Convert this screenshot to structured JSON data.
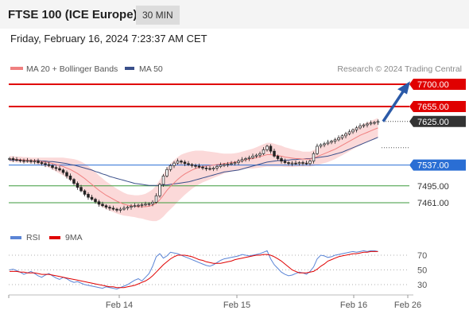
{
  "header": {
    "title": "FTSE 100 (ICE Europe)",
    "timeframe": "30 MIN"
  },
  "datetime": "Friday, February 16, 2024 7:23:37 AM CET",
  "copyright": "Research © 2024 Trading Central",
  "colors": {
    "resistance": "#e00000",
    "support": "#2a6ed4",
    "target": "#3c9a3c",
    "current": "#333333",
    "ma20": "#f08080",
    "ma50": "#3a4f8a",
    "band": "#fbd9d9",
    "rsi": "#5b85d6",
    "rsi_ma": "#e00000"
  },
  "chart_data": [
    {
      "type": "candlestick",
      "legend": [
        {
          "name": "MA 20 + Bollinger Bands",
          "color": "#f08080"
        },
        {
          "name": "MA 50",
          "color": "#3a4f8a"
        }
      ],
      "x_ticks": [
        "Feb 14",
        "Feb 15",
        "Feb 16",
        "Feb 26"
      ],
      "levels": [
        {
          "value": 7700.0,
          "label": "7700.00",
          "kind": "resistance"
        },
        {
          "value": 7655.0,
          "label": "7655.00",
          "kind": "resistance"
        },
        {
          "value": 7625.0,
          "label": "7625.00",
          "kind": "current"
        },
        {
          "value": 7537.0,
          "label": "7537.00",
          "kind": "support"
        },
        {
          "value": 7495.0,
          "label": "7495.00",
          "kind": "target"
        },
        {
          "value": 7461.0,
          "label": "7461.00",
          "kind": "target"
        }
      ],
      "close": [
        7550,
        7548,
        7547,
        7546,
        7545,
        7546,
        7544,
        7545,
        7542,
        7540,
        7538,
        7536,
        7532,
        7530,
        7527,
        7522,
        7515,
        7508,
        7500,
        7492,
        7485,
        7478,
        7472,
        7468,
        7463,
        7458,
        7455,
        7452,
        7450,
        7448,
        7446,
        7448,
        7450,
        7452,
        7454,
        7455,
        7456,
        7457,
        7458,
        7459,
        7462,
        7475,
        7498,
        7515,
        7528,
        7536,
        7541,
        7545,
        7543,
        7540,
        7538,
        7536,
        7535,
        7533,
        7531,
        7530,
        7529,
        7531,
        7534,
        7537,
        7538,
        7539,
        7540,
        7542,
        7545,
        7548,
        7550,
        7552,
        7555,
        7557,
        7560,
        7568,
        7575,
        7565,
        7555,
        7550,
        7545,
        7542,
        7540,
        7541,
        7540,
        7542,
        7541,
        7540,
        7545,
        7560,
        7575,
        7578,
        7580,
        7583,
        7585,
        7588,
        7592,
        7596,
        7600,
        7604,
        7608,
        7612,
        7616,
        7618,
        7620,
        7622,
        7623,
        7625
      ],
      "ma20": [
        7549,
        7549,
        7548,
        7548,
        7547,
        7547,
        7546,
        7546,
        7545,
        7544,
        7543,
        7542,
        7540,
        7538,
        7536,
        7534,
        7531,
        7528,
        7524,
        7520,
        7515,
        7510,
        7504,
        7498,
        7492,
        7486,
        7481,
        7476,
        7472,
        7468,
        7464,
        7461,
        7458,
        7456,
        7455,
        7454,
        7453,
        7453,
        7453,
        7454,
        7456,
        7460,
        7467,
        7476,
        7486,
        7494,
        7501,
        7508,
        7514,
        7519,
        7523,
        7527,
        7530,
        7532,
        7534,
        7535,
        7536,
        7537,
        7538,
        7539,
        7540,
        7541,
        7542,
        7543,
        7544,
        7546,
        7548,
        7549,
        7550,
        7552,
        7554,
        7556,
        7558,
        7558,
        7557,
        7556,
        7555,
        7553,
        7552,
        7551,
        7550,
        7550,
        7549,
        7549,
        7549,
        7551,
        7554,
        7557,
        7560,
        7563,
        7566,
        7569,
        7573,
        7577,
        7581,
        7585,
        7589,
        7593,
        7597,
        7600,
        7603,
        7606,
        7609,
        7612
      ],
      "ma50": [
        7547,
        7547,
        7547,
        7547,
        7547,
        7546,
        7546,
        7546,
        7546,
        7545,
        7545,
        7544,
        7544,
        7543,
        7542,
        7541,
        7540,
        7538,
        7537,
        7535,
        7533,
        7531,
        7529,
        7527,
        7524,
        7522,
        7519,
        7517,
        7514,
        7512,
        7510,
        7508,
        7506,
        7504,
        7502,
        7500,
        7499,
        7498,
        7497,
        7496,
        7496,
        7496,
        7496,
        7497,
        7497,
        7498,
        7499,
        7500,
        7501,
        7502,
        7503,
        7505,
        7507,
        7509,
        7511,
        7513,
        7515,
        7517,
        7519,
        7521,
        7523,
        7524,
        7525,
        7526,
        7527,
        7529,
        7531,
        7533,
        7535,
        7537,
        7539,
        7541,
        7543,
        7544,
        7545,
        7546,
        7546,
        7547,
        7547,
        7548,
        7548,
        7549,
        7549,
        7550,
        7550,
        7551,
        7552,
        7553,
        7554,
        7555,
        7557,
        7559,
        7561,
        7563,
        7566,
        7569,
        7572,
        7575,
        7578,
        7581,
        7584,
        7587,
        7590,
        7593
      ],
      "bb_width": [
        6,
        6,
        6,
        6,
        6,
        6,
        6,
        6,
        7,
        8,
        9,
        10,
        12,
        14,
        16,
        18,
        20,
        22,
        25,
        27,
        29,
        30,
        31,
        31,
        31,
        30,
        29,
        28,
        27,
        26,
        25,
        24,
        23,
        22,
        22,
        22,
        23,
        24,
        26,
        29,
        32,
        36,
        40,
        43,
        45,
        46,
        46,
        45,
        44,
        42,
        40,
        38,
        36,
        34,
        32,
        30,
        28,
        26,
        24,
        22,
        20,
        19,
        18,
        18,
        18,
        18,
        18,
        19,
        20,
        21,
        22,
        23,
        24,
        24,
        23,
        22,
        21,
        20,
        19,
        18,
        17,
        16,
        15,
        15,
        15,
        16,
        17,
        18,
        19,
        20,
        20,
        20,
        20,
        20,
        20,
        20,
        20,
        20,
        20,
        20,
        20,
        20,
        20,
        20
      ]
    },
    {
      "type": "line",
      "legend": [
        {
          "name": "RSI",
          "color": "#5b85d6"
        },
        {
          "name": "9MA",
          "color": "#e00000"
        }
      ],
      "y_ticks": [
        70,
        50,
        30
      ],
      "rsi": [
        50,
        51,
        49,
        47,
        44,
        46,
        48,
        45,
        42,
        40,
        43,
        45,
        42,
        39,
        37,
        40,
        38,
        35,
        33,
        34,
        32,
        30,
        29,
        28,
        27,
        26,
        25,
        27,
        26,
        25,
        24,
        26,
        28,
        30,
        33,
        36,
        38,
        35,
        40,
        45,
        55,
        68,
        72,
        66,
        69,
        74,
        73,
        72,
        70,
        68,
        66,
        64,
        62,
        60,
        58,
        56,
        55,
        57,
        60,
        63,
        65,
        66,
        67,
        68,
        69,
        71,
        70,
        69,
        70,
        71,
        72,
        74,
        76,
        65,
        57,
        52,
        47,
        44,
        42,
        43,
        45,
        47,
        46,
        44,
        48,
        54,
        65,
        70,
        69,
        67,
        68,
        70,
        71,
        72,
        73,
        74,
        75,
        74,
        75,
        76,
        75,
        76,
        76,
        75
      ],
      "rsi_ma": [
        48,
        48,
        48,
        47,
        47,
        46,
        46,
        46,
        45,
        44,
        44,
        44,
        43,
        42,
        41,
        40,
        39,
        38,
        37,
        36,
        35,
        34,
        33,
        32,
        31,
        30,
        29,
        28,
        27,
        27,
        26,
        26,
        26,
        27,
        28,
        29,
        31,
        33,
        35,
        38,
        42,
        47,
        52,
        57,
        61,
        65,
        68,
        70,
        70,
        70,
        69,
        68,
        66,
        64,
        63,
        61,
        60,
        59,
        59,
        59,
        60,
        61,
        62,
        64,
        65,
        66,
        67,
        68,
        69,
        70,
        70,
        71,
        71,
        70,
        68,
        65,
        62,
        58,
        54,
        50,
        48,
        46,
        46,
        46,
        47,
        48,
        51,
        55,
        58,
        62,
        64,
        66,
        68,
        69,
        70,
        71,
        72,
        72,
        73,
        74,
        74,
        75,
        75,
        75
      ]
    }
  ]
}
